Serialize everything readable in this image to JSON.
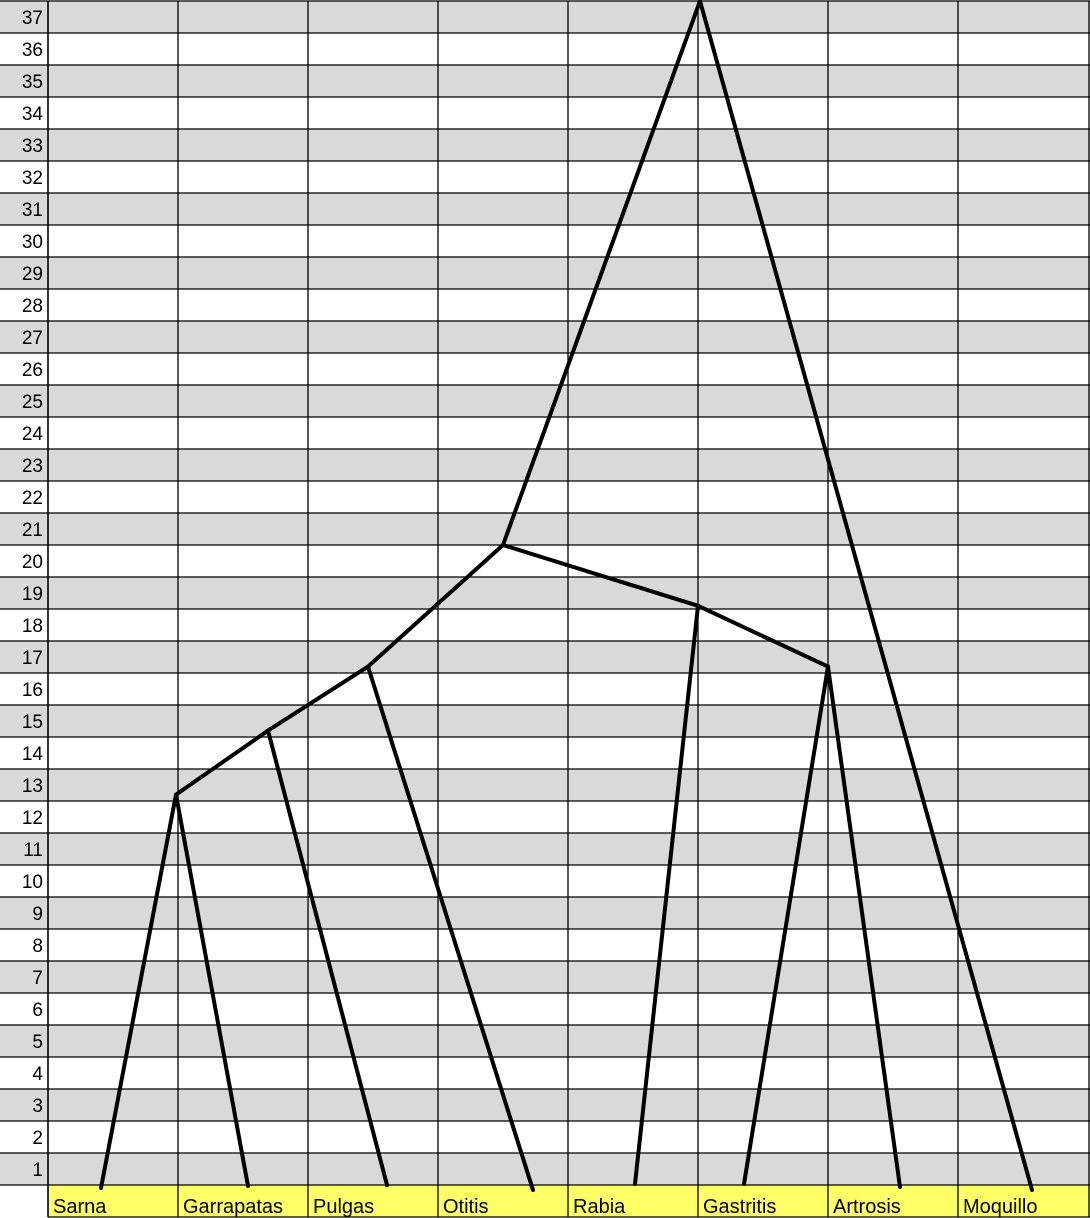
{
  "chart_data": {
    "type": "dendrogram",
    "title": "",
    "ylim": [
      0,
      37
    ],
    "row_labels": [
      "1",
      "2",
      "3",
      "4",
      "5",
      "6",
      "7",
      "8",
      "9",
      "10",
      "11",
      "12",
      "13",
      "14",
      "15",
      "16",
      "17",
      "18",
      "19",
      "20",
      "21",
      "22",
      "23",
      "24",
      "25",
      "26",
      "27",
      "28",
      "29",
      "30",
      "31",
      "32",
      "33",
      "34",
      "35",
      "36",
      "37"
    ],
    "leaves": [
      "Sarna",
      "Garrapatas",
      "Pulgas",
      "Otitis",
      "Rabia",
      "Gastritis",
      "Artrosis",
      "Moquillo"
    ],
    "merges": [
      {
        "children": [
          "Sarna",
          "Garrapatas"
        ],
        "height": 12.2
      },
      {
        "children": [
          "Sarna+Garrapatas",
          "Pulgas"
        ],
        "height": 14.2
      },
      {
        "children": [
          "Sarna+Garrapatas+Pulgas",
          "Otitis"
        ],
        "height": 16.2
      },
      {
        "children": [
          "Gastritis",
          "Artrosis"
        ],
        "height": 16.2
      },
      {
        "children": [
          "Rabia",
          "Gastritis+Artrosis"
        ],
        "height": 18.1
      },
      {
        "children": [
          "Sarna+Garrapatas+Pulgas+Otitis",
          "Rabia+Gastritis+Artrosis"
        ],
        "height": 20.0
      },
      {
        "children": [
          "Sarna+Garrapatas+Pulgas+Otitis+Rabia+Gastritis+Artrosis",
          "Moquillo"
        ],
        "height": 37.0
      }
    ],
    "colors": {
      "band_shaded": "#d9d9d9",
      "band_plain": "#ffffff",
      "leaf_row": "#ffff66",
      "grid": "#000000",
      "lines": "#000000"
    }
  }
}
